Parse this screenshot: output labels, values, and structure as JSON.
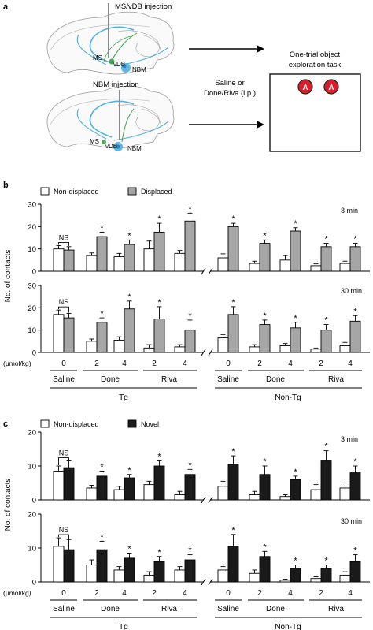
{
  "panel_a": {
    "label": "a",
    "injection_top": "MS/vDB injection",
    "injection_bottom": "NBM injection",
    "region_ms": "MS",
    "region_vdb": "vDB",
    "region_nbm": "NBM",
    "treatment_line1": "Saline or",
    "treatment_line2": "Done/Riva (i.p.)",
    "task_line1": "One-trial object",
    "task_line2": "exploration task",
    "object_letter": "A",
    "colors": {
      "pathway": "#4fb0dd",
      "green": "#3aa04a",
      "object": "#d81e2a"
    }
  },
  "axis": {
    "ylabel": "No. of contacts",
    "unit_label": "(µmol/kg)"
  },
  "groups": {
    "tg": "Tg",
    "non_tg": "Non-Tg",
    "treatments": [
      "Saline",
      "Done",
      "Riva",
      "Saline",
      "Done",
      "Riva"
    ],
    "doses": [
      "0",
      "2",
      "4",
      "2",
      "4",
      "0",
      "2",
      "4",
      "2",
      "4"
    ]
  },
  "chart_data": [
    {
      "type": "bar",
      "panel": "b",
      "time": "3 min",
      "ylabel": "No. of contacts",
      "ylim": [
        0,
        30
      ],
      "yticks": [
        0,
        10,
        20,
        30
      ],
      "categories": [
        "Tg Saline 0",
        "Tg Done 2",
        "Tg Done 4",
        "Tg Riva 2",
        "Tg Riva 4",
        "Non-Tg Saline 0",
        "Non-Tg Done 2",
        "Non-Tg Done 4",
        "Non-Tg Riva 2",
        "Non-Tg Riva 4"
      ],
      "series": [
        {
          "name": "Non-displaced",
          "color": "#ffffff",
          "values": [
            10,
            7,
            6.5,
            10,
            8,
            6,
            3.5,
            5,
            2.5,
            3.5
          ],
          "errors": [
            1.5,
            1.2,
            1.5,
            3.5,
            1.3,
            1.8,
            1,
            2,
            0.8,
            1
          ]
        },
        {
          "name": "Displaced",
          "color": "#a6a6a6",
          "values": [
            9.5,
            15.5,
            12,
            17.5,
            22.5,
            20,
            12.5,
            18,
            11,
            11
          ],
          "errors": [
            1.5,
            2,
            2,
            4,
            3.5,
            1.5,
            1.5,
            1.5,
            1.5,
            1.5
          ]
        }
      ],
      "significance": [
        "NS",
        "*",
        "*",
        "*",
        "*",
        "*",
        "*",
        "*",
        "*",
        "*"
      ]
    },
    {
      "type": "bar",
      "panel": "b",
      "time": "30 min",
      "ylabel": "No. of contacts",
      "ylim": [
        0,
        30
      ],
      "yticks": [
        0,
        10,
        20,
        30
      ],
      "categories": [
        "Tg Saline 0",
        "Tg Done 2",
        "Tg Done 4",
        "Tg Riva 2",
        "Tg Riva 4",
        "Non-Tg Saline 0",
        "Non-Tg Done 2",
        "Non-Tg Done 4",
        "Non-Tg Riva 2",
        "Non-Tg Riva 4"
      ],
      "series": [
        {
          "name": "Non-displaced",
          "color": "#ffffff",
          "values": [
            17,
            5,
            5.5,
            2,
            2.5,
            6.5,
            2.5,
            3,
            1.5,
            3
          ],
          "errors": [
            2,
            1,
            1.5,
            1.5,
            1,
            1.5,
            1,
            1,
            0.5,
            1.5
          ]
        },
        {
          "name": "Displaced",
          "color": "#a6a6a6",
          "values": [
            15.5,
            13.5,
            19.5,
            15,
            10,
            17,
            12.5,
            11,
            10,
            14
          ],
          "errors": [
            2,
            2,
            3.5,
            5.5,
            4.5,
            3.5,
            2,
            2.5,
            2.5,
            2.5
          ]
        }
      ],
      "significance": [
        "NS",
        "*",
        "*",
        "*",
        "*",
        "*",
        "*",
        "*",
        "*",
        "*"
      ]
    },
    {
      "type": "bar",
      "panel": "c",
      "time": "3 min",
      "ylabel": "No. of contacts",
      "ylim": [
        0,
        20
      ],
      "yticks": [
        0,
        10,
        20
      ],
      "categories": [
        "Tg Saline 0",
        "Tg Done 2",
        "Tg Done 4",
        "Tg Riva 2",
        "Tg Riva 4",
        "Non-Tg Saline 0",
        "Non-Tg Done 2",
        "Non-Tg Done 4",
        "Non-Tg Riva 2",
        "Non-Tg Riva 4"
      ],
      "series": [
        {
          "name": "Non-displaced",
          "color": "#ffffff",
          "values": [
            8.5,
            3.5,
            3,
            4.5,
            1.5,
            4,
            1.5,
            1,
            3,
            3.5
          ],
          "errors": [
            1.5,
            0.8,
            1,
            1,
            1,
            1.5,
            1,
            0.5,
            1.5,
            1.5
          ]
        },
        {
          "name": "Novel",
          "color": "#1a1a1a",
          "values": [
            9.5,
            7,
            6.5,
            10,
            7.5,
            10.5,
            7.5,
            6,
            11.5,
            8
          ],
          "errors": [
            2,
            1.5,
            1,
            1.5,
            1.5,
            2.5,
            2.5,
            1,
            3,
            2
          ]
        }
      ],
      "significance": [
        "NS",
        "*",
        "*",
        "*",
        "*",
        "*",
        "*",
        "*",
        "*",
        "*"
      ]
    },
    {
      "type": "bar",
      "panel": "c",
      "time": "30 min",
      "ylabel": "No. of contacts",
      "ylim": [
        0,
        20
      ],
      "yticks": [
        0,
        10,
        20
      ],
      "categories": [
        "Tg Saline 0",
        "Tg Done 2",
        "Tg Done 4",
        "Tg Riva 2",
        "Tg Riva 4",
        "Non-Tg Saline 0",
        "Non-Tg Done 2",
        "Non-Tg Done 4",
        "Non-Tg Riva 2",
        "Non-Tg Riva 4"
      ],
      "series": [
        {
          "name": "Non-displaced",
          "color": "#ffffff",
          "values": [
            10.5,
            5,
            3.5,
            2,
            3.5,
            3.5,
            2.5,
            0.5,
            1,
            2
          ],
          "errors": [
            2.5,
            1.5,
            1,
            1,
            1,
            1,
            1,
            0.3,
            0.5,
            1
          ]
        },
        {
          "name": "Novel",
          "color": "#1a1a1a",
          "values": [
            9.5,
            9.5,
            7,
            6,
            6.5,
            10.5,
            7.5,
            4,
            4,
            6
          ],
          "errors": [
            3,
            2.5,
            1.5,
            1.5,
            1.5,
            3.5,
            1.5,
            1,
            1,
            2
          ]
        }
      ],
      "significance": [
        "NS",
        "*",
        "*",
        "*",
        "*",
        "*",
        "*",
        "*",
        "*",
        "*"
      ]
    }
  ],
  "panel_b": {
    "label": "b",
    "legend_a": "Non-displaced",
    "legend_b": "Displaced",
    "time_top": "3 min",
    "time_bottom": "30 min"
  },
  "panel_c": {
    "label": "c",
    "legend_a": "Non-displaced",
    "legend_b": "Novel",
    "time_top": "3 min",
    "time_bottom": "30 min"
  }
}
